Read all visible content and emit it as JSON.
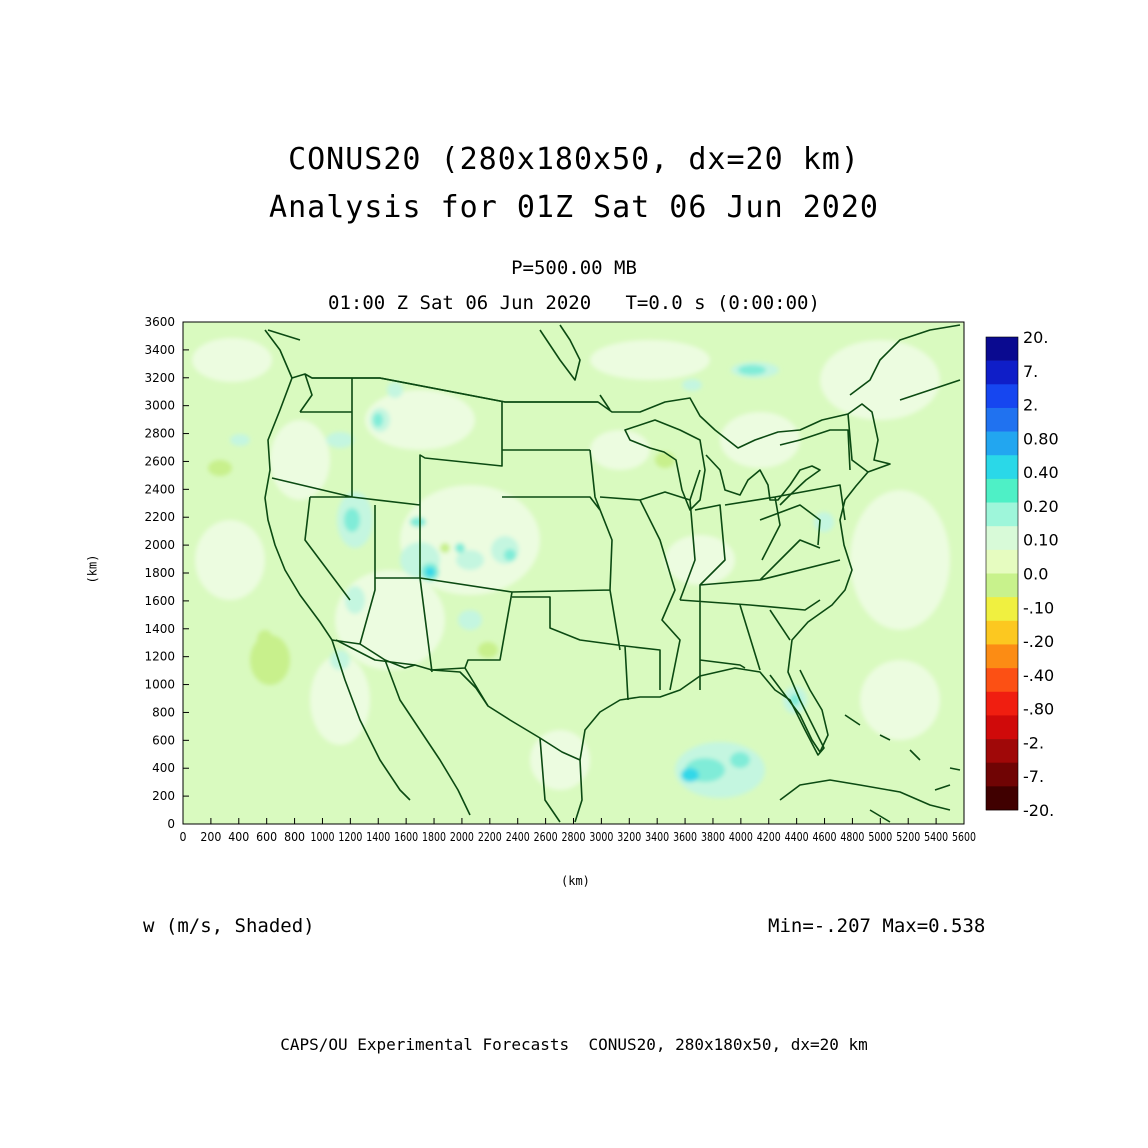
{
  "title": {
    "line1": "CONUS20 (280x180x50, dx=20 km)",
    "line2": "Analysis for 01Z Sat 06 Jun 2020",
    "level": "P=500.00 MB",
    "valid": "01:00 Z Sat 06 Jun 2020   T=0.0 s (0:00:00)"
  },
  "axes": {
    "xlabel": "(km)",
    "ylabel": "(km)",
    "x_ticks": [
      "0",
      "200",
      "400",
      "600",
      "800",
      "1000",
      "1200",
      "1400",
      "1600",
      "1800",
      "2000",
      "2200",
      "2400",
      "2600",
      "2800",
      "3000",
      "3200",
      "3400",
      "3600",
      "3800",
      "4000",
      "4200",
      "4400",
      "4600",
      "4800",
      "5000",
      "5200",
      "5400",
      "5600"
    ],
    "y_ticks": [
      "0",
      "200",
      "400",
      "600",
      "800",
      "1000",
      "1200",
      "1400",
      "1600",
      "1800",
      "2000",
      "2200",
      "2400",
      "2600",
      "2800",
      "3000",
      "3200",
      "3400",
      "3600"
    ],
    "xlim": [
      0,
      5600
    ],
    "ylim": [
      0,
      3600
    ]
  },
  "variable_label": "w (m/s, Shaded)",
  "min_max": "Min=-.207 Max=0.538",
  "footer": "CAPS/OU Experimental Forecasts  CONUS20, 280x180x50, dx=20 km",
  "colorbar": {
    "labels": [
      "20.",
      "7.",
      "2.",
      "0.80",
      "0.40",
      "0.20",
      "0.10",
      "0.0",
      "-.10",
      "-.20",
      "-.40",
      "-.80",
      "-2.",
      "-7.",
      "-20."
    ],
    "colors": [
      "#0a0a90",
      "#0f1ec8",
      "#1646f0",
      "#2072f0",
      "#22a6f0",
      "#2ad8e8",
      "#4ef0c6",
      "#9ef6da",
      "#d8fad8",
      "#e6fcc0",
      "#c8f28c",
      "#f0f040",
      "#fcc820",
      "#fc8c14",
      "#fc5014",
      "#f01e10",
      "#d00a0a",
      "#a00808",
      "#700404",
      "#400000"
    ]
  },
  "map_colors": {
    "background": "#d9fabf",
    "near_zero": "#ecfce0",
    "weak_up": "#c4f6e0",
    "moderate_up": "#80ecd8",
    "strong_up": "#30d8e8",
    "weak_down": "#c8f08c",
    "boundary": "#0b4a12"
  }
}
